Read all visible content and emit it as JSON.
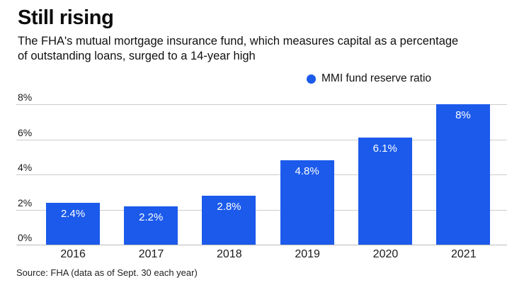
{
  "header": {
    "title": "Still rising",
    "subtitle_lines": [
      "The FHA's mutual mortgage insurance fund, which measures capital as a percentage",
      "of outstanding loans, surged to a 14-year high"
    ]
  },
  "legend": {
    "label": "MMI fund reserve ratio"
  },
  "chart_data": {
    "type": "bar",
    "title": "Still rising",
    "subtitle": "The FHA's mutual mortgage insurance fund, which measures capital as a percentage of outstanding loans, surged to a 14-year high",
    "series_name": "MMI fund reserve ratio",
    "categories": [
      "2016",
      "2017",
      "2018",
      "2019",
      "2020",
      "2021"
    ],
    "values": [
      2.4,
      2.2,
      2.8,
      4.8,
      6.1,
      8.0
    ],
    "bar_labels": [
      "2.4%",
      "2.2%",
      "2.8%",
      "4.8%",
      "6.1%",
      "8%"
    ],
    "xlabel": "",
    "ylabel": "",
    "ylim": [
      0,
      8
    ],
    "y_ticks": [
      0,
      2,
      4,
      6,
      8
    ],
    "y_tick_labels": [
      "0%",
      "2%",
      "4%",
      "6%",
      "8%"
    ],
    "grid": true,
    "legend_position": "top-right"
  },
  "source": "Source: FHA (data as of Sept. 30 each year)",
  "colors": {
    "bar": "#1b5aeb",
    "gridline": "#cccccc",
    "baseline": "#bbbbbb",
    "bar_label": "#ffffff",
    "text": "#111111"
  }
}
